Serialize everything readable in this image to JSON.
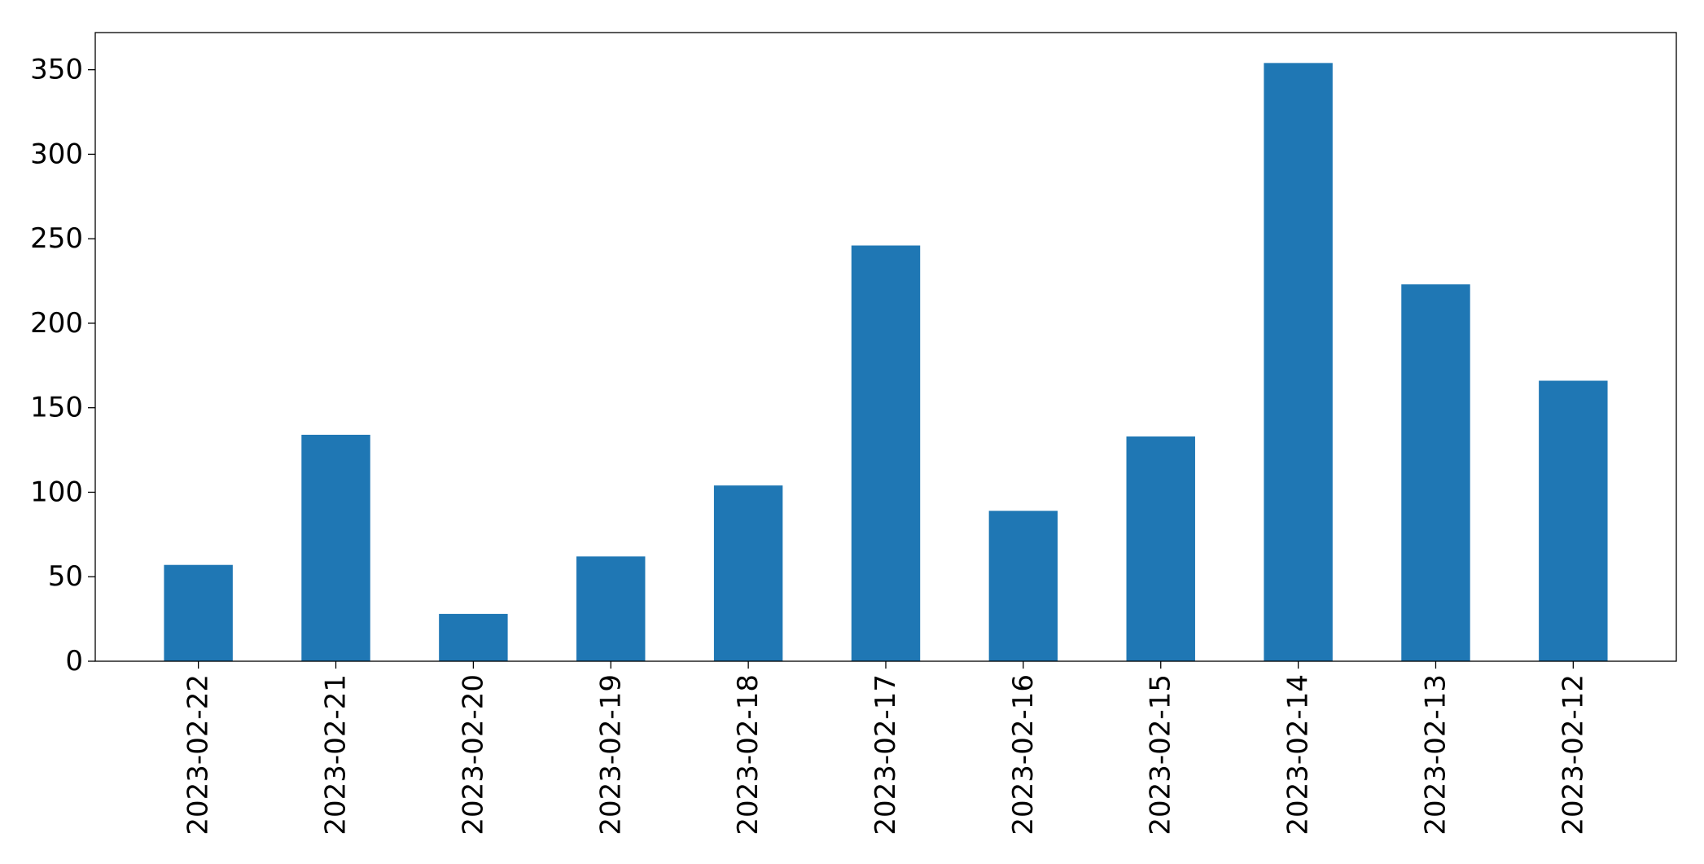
{
  "chart_data": {
    "type": "bar",
    "title": "",
    "xlabel": "",
    "ylabel": "",
    "categories": [
      "2023-02-22",
      "2023-02-21",
      "2023-02-20",
      "2023-02-19",
      "2023-02-18",
      "2023-02-17",
      "2023-02-16",
      "2023-02-15",
      "2023-02-14",
      "2023-02-13",
      "2023-02-12"
    ],
    "values": [
      57,
      134,
      28,
      62,
      104,
      246,
      89,
      133,
      354,
      223,
      166
    ],
    "ylim": [
      0,
      372
    ],
    "yticks": [
      0,
      50,
      100,
      150,
      200,
      250,
      300,
      350
    ],
    "bar_color": "#1f77b4",
    "grid": false,
    "legend": "none",
    "x_tick_rotation": "vertical"
  }
}
